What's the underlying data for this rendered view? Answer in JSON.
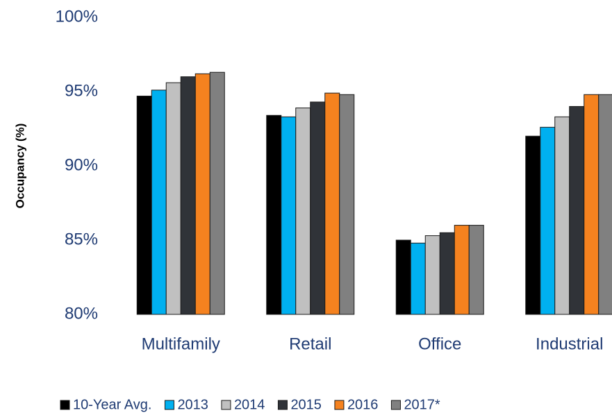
{
  "chart_data": {
    "type": "bar",
    "y_label": "Occupancy (%)",
    "categories": [
      "Multifamily",
      "Retail",
      "Office",
      "Industrial"
    ],
    "series": [
      {
        "name": "10-Year Avg.",
        "color": "#000000",
        "values": [
          94.7,
          93.4,
          85.0,
          92.0
        ]
      },
      {
        "name": "2013",
        "color": "#00b0f0",
        "values": [
          95.1,
          93.3,
          84.8,
          92.6
        ]
      },
      {
        "name": "2014",
        "color": "#c0c0c0",
        "values": [
          95.6,
          93.9,
          85.3,
          93.3
        ]
      },
      {
        "name": "2015",
        "color": "#303338",
        "values": [
          96.0,
          94.3,
          85.5,
          94.0
        ]
      },
      {
        "name": "2016",
        "color": "#f5821f",
        "values": [
          96.2,
          94.9,
          86.0,
          94.8
        ]
      },
      {
        "name": "2017*",
        "color": "#808080",
        "values": [
          96.3,
          94.8,
          86.0,
          94.8
        ]
      }
    ],
    "ylim": [
      80,
      100
    ],
    "yticks": [
      {
        "value": 80,
        "label": "80%"
      },
      {
        "value": 85,
        "label": "85%"
      },
      {
        "value": 90,
        "label": "90%"
      },
      {
        "value": 95,
        "label": "95%"
      },
      {
        "value": 100,
        "label": "100%"
      }
    ],
    "legend": "bottom"
  }
}
